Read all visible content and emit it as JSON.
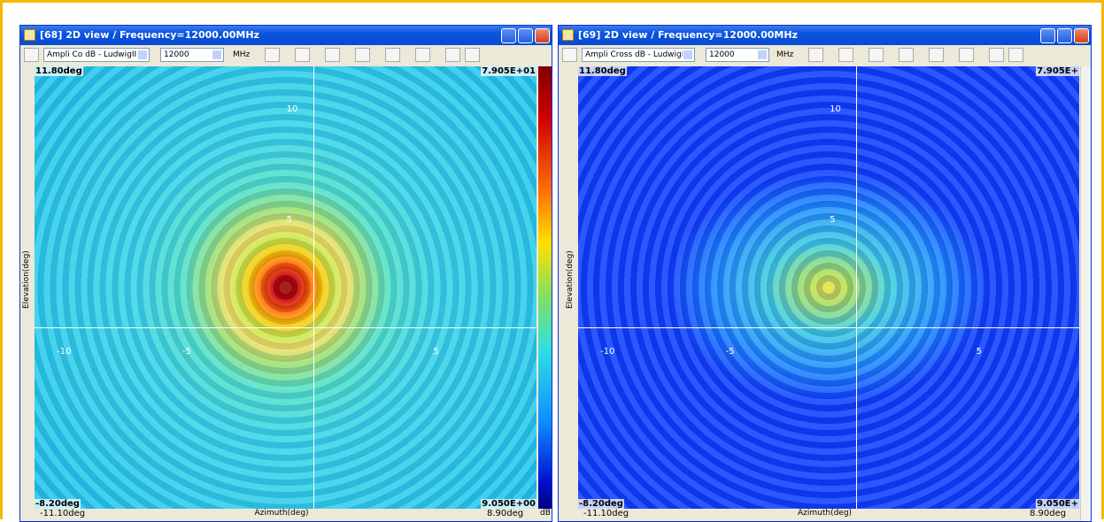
{
  "windows": [
    {
      "title": "[68] 2D view / Frequency=12000.00MHz",
      "quantity": "Ampli Co dB - LudwigIII",
      "frequency": "12000",
      "unit": "MHz",
      "corners": {
        "top_left": "11.80deg",
        "top_right": "7.905E+01",
        "bottom_left": "-8.20deg",
        "bottom_right": "9.050E+00"
      },
      "x_axis": {
        "min": "-11.10deg",
        "label": "Azimuth(deg)",
        "max": "8.90deg"
      },
      "y_axis_label": "Elevation(deg)",
      "y_ticks": [
        "10",
        "5"
      ],
      "x_ticks": [
        "-10",
        "-5",
        "5"
      ],
      "colorbar_unit": "dB"
    },
    {
      "title": "[69] 2D view / Frequency=12000.00MHz",
      "quantity": "Ampli Cross dB - LudwigIII",
      "frequency": "12000",
      "unit": "MHz",
      "corners": {
        "top_left": "11.80deg",
        "top_right": "7.905E+",
        "bottom_left": "-8.20deg",
        "bottom_right": "9.050E+"
      },
      "x_axis": {
        "min": "-11.10deg",
        "label": "Azimuth(deg)",
        "max": "8.90deg"
      },
      "y_axis_label": "Elevation(deg)",
      "y_ticks": [
        "10",
        "5"
      ],
      "x_ticks": [
        "-10",
        "-5",
        "5"
      ]
    }
  ]
}
